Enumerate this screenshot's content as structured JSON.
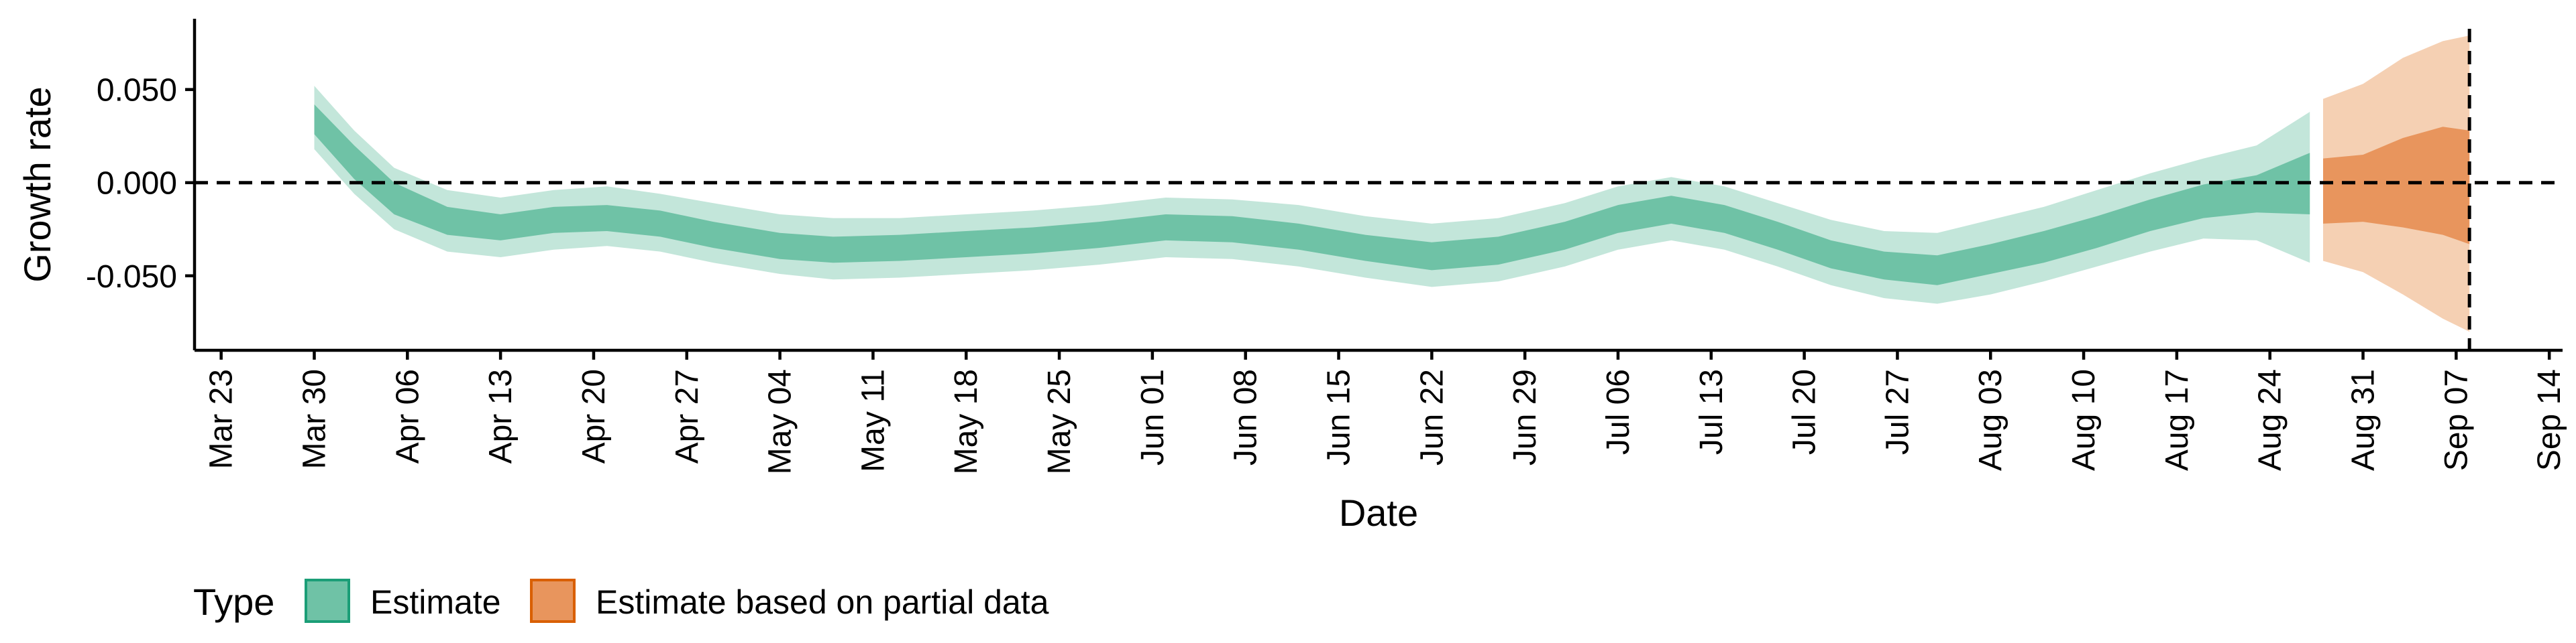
{
  "chart_data": {
    "type": "area",
    "xlabel": "Date",
    "ylabel": "Growth rate",
    "x_ticks": [
      "Mar 23",
      "Mar 30",
      "Apr 06",
      "Apr 13",
      "Apr 20",
      "Apr 27",
      "May 04",
      "May 11",
      "May 18",
      "May 25",
      "Jun 01",
      "Jun 08",
      "Jun 15",
      "Jun 22",
      "Jun 29",
      "Jul 06",
      "Jul 13",
      "Jul 20",
      "Jul 27",
      "Aug 03",
      "Aug 10",
      "Aug 17",
      "Aug 24",
      "Aug 31",
      "Sep 07",
      "Sep 14"
    ],
    "y_ticks": [
      0.05,
      0.0,
      -0.05
    ],
    "y_tick_labels": [
      "0.050",
      "0.000",
      "-0.050"
    ],
    "xlim": [
      "2020-03-21",
      "2020-09-15"
    ],
    "ylim": [
      -0.09,
      0.088
    ],
    "reference_line_y": 0.0,
    "vertical_line_date": "2020-09-08",
    "legend": {
      "title": "Type",
      "position": "bottom-left",
      "entries": [
        "Estimate",
        "Estimate based on partial data"
      ]
    },
    "series": [
      {
        "name": "Estimate",
        "color_outer": "#c3e6da",
        "color_inner": "#6fc2a6",
        "points": [
          {
            "date": "2020-03-30",
            "outer": [
              0.018,
              0.052
            ],
            "inner": [
              0.026,
              0.042
            ]
          },
          {
            "date": "2020-04-02",
            "outer": [
              -0.006,
              0.028
            ],
            "inner": [
              0.002,
              0.02
            ]
          },
          {
            "date": "2020-04-05",
            "outer": [
              -0.025,
              0.008
            ],
            "inner": [
              -0.017,
              0.0
            ]
          },
          {
            "date": "2020-04-09",
            "outer": [
              -0.037,
              -0.004
            ],
            "inner": [
              -0.028,
              -0.013
            ]
          },
          {
            "date": "2020-04-13",
            "outer": [
              -0.04,
              -0.008
            ],
            "inner": [
              -0.031,
              -0.017
            ]
          },
          {
            "date": "2020-04-17",
            "outer": [
              -0.036,
              -0.004
            ],
            "inner": [
              -0.027,
              -0.013
            ]
          },
          {
            "date": "2020-04-21",
            "outer": [
              -0.034,
              -0.002
            ],
            "inner": [
              -0.026,
              -0.012
            ]
          },
          {
            "date": "2020-04-25",
            "outer": [
              -0.037,
              -0.006
            ],
            "inner": [
              -0.029,
              -0.015
            ]
          },
          {
            "date": "2020-04-29",
            "outer": [
              -0.043,
              -0.011
            ],
            "inner": [
              -0.035,
              -0.021
            ]
          },
          {
            "date": "2020-05-04",
            "outer": [
              -0.049,
              -0.017
            ],
            "inner": [
              -0.041,
              -0.027
            ]
          },
          {
            "date": "2020-05-08",
            "outer": [
              -0.052,
              -0.019
            ],
            "inner": [
              -0.043,
              -0.029
            ]
          },
          {
            "date": "2020-05-13",
            "outer": [
              -0.051,
              -0.019
            ],
            "inner": [
              -0.042,
              -0.028
            ]
          },
          {
            "date": "2020-05-18",
            "outer": [
              -0.049,
              -0.017
            ],
            "inner": [
              -0.04,
              -0.026
            ]
          },
          {
            "date": "2020-05-23",
            "outer": [
              -0.047,
              -0.015
            ],
            "inner": [
              -0.038,
              -0.024
            ]
          },
          {
            "date": "2020-05-28",
            "outer": [
              -0.044,
              -0.012
            ],
            "inner": [
              -0.035,
              -0.021
            ]
          },
          {
            "date": "2020-06-02",
            "outer": [
              -0.04,
              -0.008
            ],
            "inner": [
              -0.031,
              -0.017
            ]
          },
          {
            "date": "2020-06-07",
            "outer": [
              -0.041,
              -0.009
            ],
            "inner": [
              -0.032,
              -0.018
            ]
          },
          {
            "date": "2020-06-12",
            "outer": [
              -0.045,
              -0.012
            ],
            "inner": [
              -0.036,
              -0.022
            ]
          },
          {
            "date": "2020-06-17",
            "outer": [
              -0.051,
              -0.018
            ],
            "inner": [
              -0.042,
              -0.028
            ]
          },
          {
            "date": "2020-06-22",
            "outer": [
              -0.056,
              -0.022
            ],
            "inner": [
              -0.047,
              -0.032
            ]
          },
          {
            "date": "2020-06-27",
            "outer": [
              -0.053,
              -0.019
            ],
            "inner": [
              -0.044,
              -0.029
            ]
          },
          {
            "date": "2020-07-02",
            "outer": [
              -0.045,
              -0.011
            ],
            "inner": [
              -0.036,
              -0.021
            ]
          },
          {
            "date": "2020-07-06",
            "outer": [
              -0.036,
              -0.002
            ],
            "inner": [
              -0.027,
              -0.012
            ]
          },
          {
            "date": "2020-07-10",
            "outer": [
              -0.031,
              0.003
            ],
            "inner": [
              -0.022,
              -0.007
            ]
          },
          {
            "date": "2020-07-14",
            "outer": [
              -0.036,
              -0.002
            ],
            "inner": [
              -0.027,
              -0.012
            ]
          },
          {
            "date": "2020-07-18",
            "outer": [
              -0.045,
              -0.011
            ],
            "inner": [
              -0.036,
              -0.021
            ]
          },
          {
            "date": "2020-07-22",
            "outer": [
              -0.055,
              -0.02
            ],
            "inner": [
              -0.046,
              -0.031
            ]
          },
          {
            "date": "2020-07-26",
            "outer": [
              -0.062,
              -0.026
            ],
            "inner": [
              -0.052,
              -0.037
            ]
          },
          {
            "date": "2020-07-30",
            "outer": [
              -0.065,
              -0.027
            ],
            "inner": [
              -0.055,
              -0.039
            ]
          },
          {
            "date": "2020-08-03",
            "outer": [
              -0.06,
              -0.02
            ],
            "inner": [
              -0.049,
              -0.033
            ]
          },
          {
            "date": "2020-08-07",
            "outer": [
              -0.053,
              -0.013
            ],
            "inner": [
              -0.043,
              -0.026
            ]
          },
          {
            "date": "2020-08-11",
            "outer": [
              -0.045,
              -0.004
            ],
            "inner": [
              -0.035,
              -0.018
            ]
          },
          {
            "date": "2020-08-15",
            "outer": [
              -0.037,
              0.005
            ],
            "inner": [
              -0.026,
              -0.009
            ]
          },
          {
            "date": "2020-08-19",
            "outer": [
              -0.03,
              0.013
            ],
            "inner": [
              -0.019,
              -0.001
            ]
          },
          {
            "date": "2020-08-23",
            "outer": [
              -0.031,
              0.02
            ],
            "inner": [
              -0.016,
              0.004
            ]
          },
          {
            "date": "2020-08-27",
            "outer": [
              -0.043,
              0.038
            ],
            "inner": [
              -0.017,
              0.016
            ]
          }
        ]
      },
      {
        "name": "Estimate based on partial data",
        "color_outer": "#f5d0b3",
        "color_inner": "#e8955d",
        "points": [
          {
            "date": "2020-08-28",
            "outer": [
              -0.042,
              0.045
            ],
            "inner": [
              -0.022,
              0.013
            ]
          },
          {
            "date": "2020-08-31",
            "outer": [
              -0.048,
              0.053
            ],
            "inner": [
              -0.021,
              0.015
            ]
          },
          {
            "date": "2020-09-03",
            "outer": [
              -0.06,
              0.067
            ],
            "inner": [
              -0.024,
              0.024
            ]
          },
          {
            "date": "2020-09-06",
            "outer": [
              -0.073,
              0.076
            ],
            "inner": [
              -0.028,
              0.03
            ]
          },
          {
            "date": "2020-09-08",
            "outer": [
              -0.08,
              0.079
            ],
            "inner": [
              -0.033,
              0.028
            ]
          }
        ]
      }
    ]
  }
}
